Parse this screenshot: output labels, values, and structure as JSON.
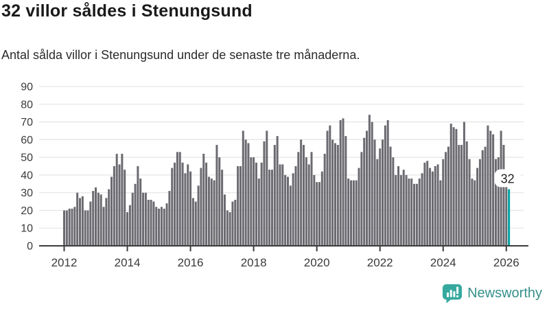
{
  "header": {
    "title": "32 villor såldes i Stenungsund",
    "subtitle": "Antal sålda villor i Stenungsund under de senaste tre månaderna."
  },
  "chart_data": {
    "type": "bar",
    "title": "32 villor såldes i Stenungsund",
    "subtitle": "Antal sålda villor i Stenungsund under de senaste tre månaderna.",
    "frequency": "monthly",
    "x_start": "2012-01",
    "x_end": "2026-02",
    "values": [
      20,
      20,
      21,
      21,
      22,
      30,
      27,
      28,
      20,
      20,
      25,
      31,
      33,
      30,
      29,
      22,
      27,
      32,
      39,
      45,
      52,
      46,
      52,
      43,
      19,
      23,
      30,
      35,
      45,
      38,
      30,
      30,
      26,
      26,
      25,
      22,
      21,
      22,
      21,
      24,
      31,
      44,
      47,
      53,
      53,
      47,
      41,
      46,
      42,
      27,
      25,
      34,
      44,
      52,
      47,
      39,
      38,
      37,
      57,
      50,
      43,
      29,
      20,
      19,
      25,
      26,
      45,
      45,
      65,
      60,
      58,
      50,
      50,
      47,
      38,
      47,
      59,
      65,
      43,
      43,
      57,
      62,
      46,
      46,
      40,
      39,
      34,
      41,
      45,
      53,
      60,
      57,
      50,
      46,
      53,
      40,
      36,
      36,
      42,
      52,
      65,
      68,
      60,
      58,
      57,
      71,
      72,
      62,
      38,
      37,
      37,
      37,
      44,
      53,
      61,
      65,
      74,
      70,
      60,
      49,
      55,
      60,
      68,
      71,
      56,
      50,
      40,
      45,
      40,
      43,
      40,
      38,
      38,
      35,
      35,
      38,
      41,
      47,
      48,
      44,
      42,
      45,
      46,
      37,
      49,
      53,
      56,
      69,
      67,
      66,
      57,
      57,
      70,
      59,
      49,
      38,
      37,
      44,
      49,
      54,
      56,
      68,
      65,
      63,
      49,
      50,
      65,
      57,
      40,
      32
    ],
    "highlight_last": true,
    "annotation": {
      "text": "32",
      "value": 32
    },
    "ylim": [
      0,
      90
    ],
    "yticks": [
      0,
      10,
      20,
      30,
      40,
      50,
      60,
      70,
      80,
      90
    ],
    "xticks": [
      2012,
      2014,
      2016,
      2018,
      2020,
      2022,
      2024,
      2026
    ],
    "grid": "horizontal",
    "legend": "none",
    "xlabel": "",
    "ylabel": "",
    "colors": {
      "bar": "#6a6a70",
      "highlight": "#00a3a3",
      "grid": "#e6e6e6",
      "axis": "#3c3c3c",
      "tick_label": "#3a3a3a",
      "annotation_text": "#222222",
      "annotation_bg": "#ffffff"
    }
  },
  "footer": {
    "brand": "Newsworthy",
    "brand_text_color": "#35908b",
    "icon": "newsworthy-chart-bubble-icon",
    "icon_color": "#36a99e"
  }
}
